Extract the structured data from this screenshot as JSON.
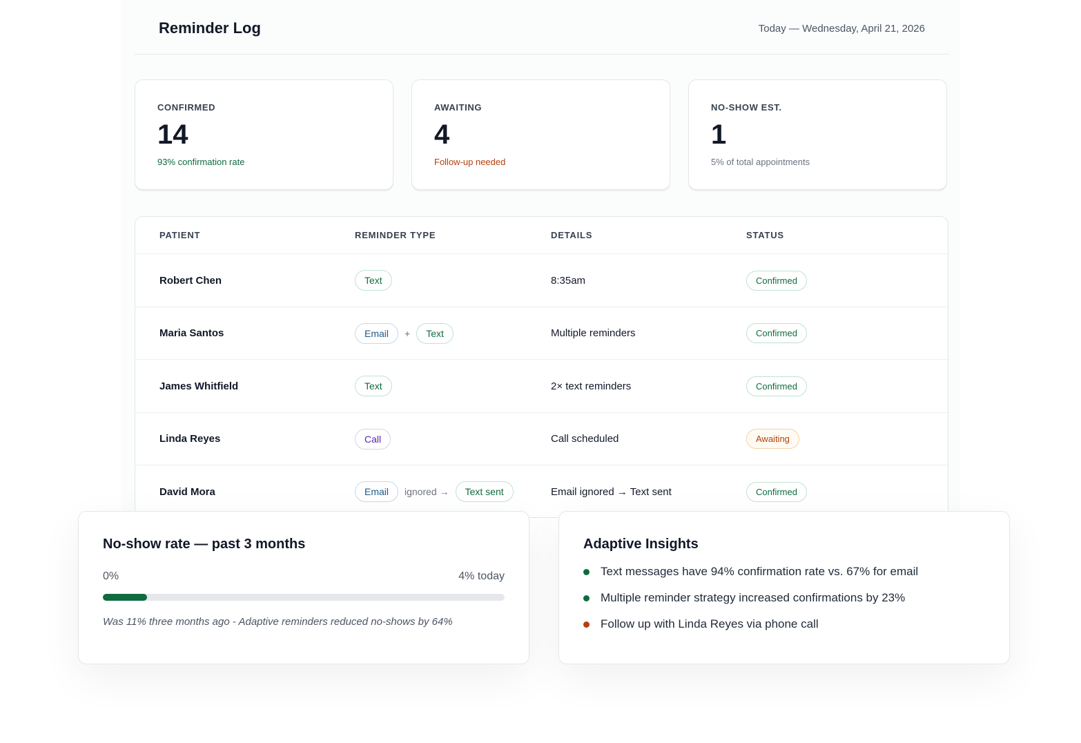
{
  "header": {
    "title": "Reminder Log",
    "date": "Today — Wednesday, April 21, 2026"
  },
  "stats": [
    {
      "label": "CONFIRMED",
      "value": "14",
      "note": "93% confirmation rate",
      "tone": "green"
    },
    {
      "label": "AWAITING",
      "value": "4",
      "note": "Follow-up needed",
      "tone": "orange"
    },
    {
      "label": "NO-SHOW EST.",
      "value": "1",
      "note": "5% of total appointments",
      "tone": "grey"
    }
  ],
  "table": {
    "columns": [
      "PATIENT",
      "REMINDER TYPE",
      "DETAILS",
      "STATUS"
    ],
    "rows": [
      {
        "patient": "Robert Chen",
        "reminder": [
          {
            "text": "Text",
            "style": "text"
          }
        ],
        "details": "8:35am",
        "status": {
          "text": "Confirmed",
          "tone": "green"
        }
      },
      {
        "patient": "Maria Santos",
        "reminder": [
          {
            "text": "Email",
            "style": "email"
          },
          {
            "text": "+"
          },
          {
            "text": "Text",
            "style": "text"
          }
        ],
        "details": "Multiple reminders",
        "status": {
          "text": "Confirmed",
          "tone": "green"
        }
      },
      {
        "patient": "James Whitfield",
        "reminder": [
          {
            "text": "Text",
            "style": "text"
          }
        ],
        "details": "2× text reminders",
        "status": {
          "text": "Confirmed",
          "tone": "green"
        }
      },
      {
        "patient": "Linda Reyes",
        "reminder": [
          {
            "text": "Call",
            "style": "call"
          }
        ],
        "details": "Call scheduled",
        "status": {
          "text": "Awaiting",
          "tone": "orange"
        }
      },
      {
        "patient": "David Mora",
        "reminder": [
          {
            "text": "Email",
            "style": "email"
          },
          {
            "text": "ignored →"
          },
          {
            "text": "Text sent",
            "style": "text"
          }
        ],
        "details": "Email ignored → Text sent",
        "status": {
          "text": "Confirmed",
          "tone": "green"
        }
      }
    ]
  },
  "noshow": {
    "title": "No-show rate — past 3 months",
    "start_label": "0%",
    "end_label": "4% today",
    "note": "Was 11% three months ago - Adaptive reminders reduced no-shows by 64%"
  },
  "insights": {
    "title": "Adaptive Insights",
    "items": [
      {
        "text": "Text messages have 94% confirmation rate vs. 67% for email",
        "tone": "green"
      },
      {
        "text": "Multiple reminder strategy increased confirmations by 23%",
        "tone": "green"
      },
      {
        "text": "Follow up with Linda Reyes via phone call",
        "tone": "orange"
      }
    ]
  }
}
